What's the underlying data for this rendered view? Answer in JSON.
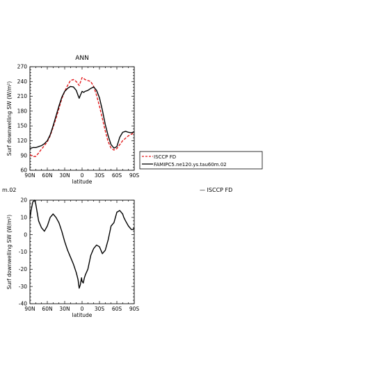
{
  "chart_data": [
    {
      "type": "line",
      "title": "ANN",
      "xlabel": "latitude",
      "ylabel": "Surf downwelling SW (W/m²)",
      "x_ticks": [
        90,
        60,
        30,
        0,
        -30,
        -60,
        -90
      ],
      "x_tick_labels": [
        "90N",
        "60N",
        "30N",
        "0",
        "30S",
        "60S",
        "90S"
      ],
      "ylim": [
        60,
        270
      ],
      "y_ticks": [
        60,
        90,
        120,
        150,
        180,
        210,
        240,
        270
      ],
      "grid": false,
      "legend": "right, outside plot",
      "series": [
        {
          "name": "ISCCP FD",
          "color": "#e41a1c",
          "style": "dashed",
          "x": [
            90,
            85,
            80,
            75,
            70,
            65,
            60,
            55,
            50,
            45,
            40,
            35,
            30,
            25,
            20,
            15,
            10,
            7,
            5,
            3,
            0,
            -3,
            -5,
            -10,
            -15,
            -20,
            -25,
            -30,
            -35,
            -40,
            -45,
            -50,
            -55,
            -60,
            -65,
            -70,
            -75,
            -80,
            -85,
            -90
          ],
          "values": [
            92,
            88,
            88,
            95,
            103,
            110,
            118,
            130,
            147,
            165,
            185,
            205,
            220,
            232,
            242,
            244,
            240,
            235,
            232,
            238,
            248,
            246,
            244,
            242,
            240,
            230,
            212,
            190,
            165,
            140,
            118,
            105,
            101,
            104,
            112,
            120,
            125,
            130,
            133,
            136
          ]
        },
        {
          "name": "FAMIPC5.ne120.ys.tau60m.02",
          "color": "#000000",
          "style": "solid",
          "x": [
            90,
            85,
            80,
            75,
            70,
            65,
            60,
            55,
            50,
            45,
            40,
            35,
            30,
            25,
            20,
            15,
            10,
            7,
            5,
            3,
            0,
            -3,
            -5,
            -10,
            -15,
            -20,
            -25,
            -30,
            -35,
            -40,
            -45,
            -50,
            -55,
            -60,
            -65,
            -70,
            -75,
            -80,
            -85,
            -90
          ],
          "values": [
            104,
            106,
            106,
            108,
            110,
            114,
            120,
            132,
            150,
            170,
            190,
            208,
            220,
            226,
            230,
            229,
            222,
            212,
            206,
            212,
            220,
            218,
            220,
            222,
            226,
            229,
            222,
            207,
            182,
            153,
            130,
            112,
            105,
            108,
            127,
            137,
            139,
            137,
            136,
            138
          ]
        }
      ]
    },
    {
      "type": "line",
      "title": "",
      "xlabel": "latitude",
      "ylabel": "Surf downwelling SW (W/m²)",
      "x_ticks": [
        90,
        60,
        30,
        0,
        -30,
        -60,
        -90
      ],
      "x_tick_labels": [
        "90N",
        "60N",
        "30N",
        "0",
        "30S",
        "60S",
        "90S"
      ],
      "ylim": [
        -40,
        20
      ],
      "y_ticks": [
        -40,
        -30,
        -20,
        -10,
        0,
        10,
        20
      ],
      "grid": false,
      "series": [
        {
          "name": "",
          "color": "#000000",
          "style": "solid",
          "x": [
            90,
            88,
            85,
            82,
            80,
            78,
            75,
            70,
            65,
            60,
            55,
            50,
            45,
            40,
            35,
            30,
            25,
            20,
            15,
            10,
            7,
            5,
            3,
            1,
            0,
            -2,
            -4,
            -6,
            -10,
            -15,
            -20,
            -25,
            -30,
            -35,
            -40,
            -45,
            -50,
            -55,
            -60,
            -65,
            -70,
            -72,
            -75,
            -80,
            -85,
            -88,
            -90
          ],
          "values": [
            9,
            14,
            19,
            20,
            18,
            14,
            8,
            4,
            2,
            5,
            10,
            12,
            10,
            7,
            2,
            -4,
            -9,
            -13,
            -17,
            -22,
            -26,
            -31,
            -29,
            -25,
            -27,
            -28,
            -25,
            -23,
            -20,
            -12,
            -8,
            -6,
            -7,
            -11,
            -9,
            -3,
            5,
            7,
            13,
            14,
            12,
            10,
            8,
            5,
            3,
            3,
            4
          ]
        }
      ]
    }
  ],
  "legend": {
    "entries": [
      {
        "label": "ISCCP FD",
        "color": "#e41a1c",
        "style": "dashed"
      },
      {
        "label": "FAMIPC5.ne120.ys.tau60m.02",
        "color": "#000000",
        "style": "solid"
      }
    ]
  },
  "fragments": {
    "left": "m.02",
    "right": "— ISCCP FD"
  }
}
